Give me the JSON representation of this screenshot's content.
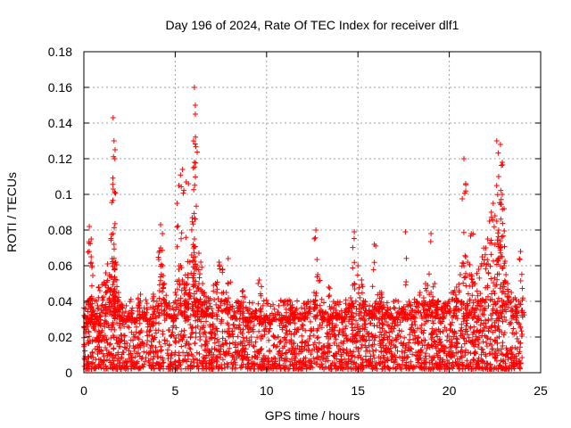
{
  "chart_data": {
    "type": "scatter",
    "title": "Day 196 of 2024, Rate Of TEC Index for receiver dlf1",
    "xlabel": "GPS time / hours",
    "ylabel": "ROTI / TECUs",
    "xlim": [
      0,
      25
    ],
    "ylim": [
      0,
      0.18
    ],
    "xticks": [
      0,
      5,
      10,
      15,
      20,
      25
    ],
    "xtick_labels": [
      "0",
      "5",
      "10",
      "15",
      "20",
      "25"
    ],
    "yticks": [
      0,
      0.02,
      0.04,
      0.06,
      0.08,
      0.1,
      0.12,
      0.14,
      0.16,
      0.18
    ],
    "ytick_labels": [
      "0",
      "0.02",
      "0.04",
      "0.06",
      "0.08",
      "0.1",
      "0.12",
      "0.14",
      "0.16",
      "0.18"
    ],
    "grid": true,
    "marker": "+",
    "color": "#ff0000",
    "series": [
      {
        "name": "dlf1",
        "x": [
          0.1,
          0.2,
          0.3,
          0.35,
          0.4,
          0.5,
          0.6,
          0.7,
          0.8,
          0.9,
          1.0,
          1.1,
          1.2,
          1.3,
          1.4,
          1.5,
          1.55,
          1.6,
          1.65,
          1.7,
          1.75,
          1.8,
          1.9,
          2.0,
          2.1,
          2.2,
          2.4,
          2.6,
          2.8,
          3.0,
          3.2,
          3.4,
          3.6,
          3.8,
          4.0,
          4.2,
          4.3,
          4.4,
          4.6,
          4.8,
          5.0,
          5.2,
          5.3,
          5.4,
          5.5,
          5.6,
          5.7,
          5.8,
          5.9,
          6.0,
          6.05,
          6.1,
          6.15,
          6.2,
          6.3,
          6.4,
          6.5,
          6.6,
          6.7,
          6.8,
          7.0,
          7.2,
          7.4,
          7.6,
          7.8,
          8.0,
          8.2,
          8.4,
          8.6,
          8.8,
          9.0,
          9.2,
          9.4,
          9.6,
          9.8,
          10.0,
          10.2,
          10.4,
          10.6,
          10.8,
          11.0,
          11.2,
          11.4,
          11.6,
          11.8,
          12.0,
          12.2,
          12.4,
          12.6,
          12.8,
          13.0,
          13.2,
          13.4,
          13.6,
          13.8,
          14.0,
          14.2,
          14.4,
          14.6,
          14.8,
          15.0,
          15.2,
          15.4,
          15.6,
          15.8,
          16.0,
          16.2,
          16.4,
          16.6,
          16.8,
          17.0,
          17.2,
          17.4,
          17.6,
          17.8,
          18.0,
          18.2,
          18.4,
          18.6,
          18.8,
          19.0,
          19.2,
          19.4,
          19.6,
          19.8,
          20.0,
          20.2,
          20.4,
          20.6,
          20.8,
          20.9,
          21.0,
          21.2,
          21.4,
          21.6,
          21.8,
          22.0,
          22.1,
          22.2,
          22.3,
          22.4,
          22.5,
          22.6,
          22.7,
          22.8,
          22.9,
          23.0,
          23.1,
          23.2,
          23.4,
          23.6,
          23.8,
          24.0,
          1.6,
          1.65,
          1.7,
          1.6,
          6.05,
          6.1,
          6.1,
          6.0,
          6.05,
          5.6,
          5.2,
          5.4,
          20.8,
          20.9,
          22.6,
          22.8,
          22.9,
          22.7,
          22.9,
          23.0,
          0.3,
          0.4,
          4.2,
          4.3,
          9.6,
          12.7,
          14.8,
          15.9,
          17.6,
          19.0,
          21.2,
          0.8,
          3.1,
          7.9,
          8.7,
          11.3,
          13.4,
          16.3,
          18.7,
          20.3,
          23.9
        ],
        "y": [
          0.022,
          0.031,
          0.041,
          0.028,
          0.065,
          0.035,
          0.024,
          0.03,
          0.018,
          0.027,
          0.042,
          0.05,
          0.056,
          0.061,
          0.055,
          0.047,
          0.064,
          0.078,
          0.072,
          0.058,
          0.062,
          0.052,
          0.045,
          0.038,
          0.03,
          0.026,
          0.032,
          0.035,
          0.028,
          0.038,
          0.034,
          0.03,
          0.027,
          0.044,
          0.04,
          0.07,
          0.06,
          0.05,
          0.038,
          0.032,
          0.045,
          0.058,
          0.06,
          0.052,
          0.044,
          0.05,
          0.055,
          0.062,
          0.066,
          0.07,
          0.075,
          0.065,
          0.058,
          0.06,
          0.067,
          0.062,
          0.05,
          0.045,
          0.04,
          0.042,
          0.036,
          0.05,
          0.062,
          0.058,
          0.045,
          0.038,
          0.032,
          0.04,
          0.036,
          0.03,
          0.028,
          0.033,
          0.035,
          0.03,
          0.028,
          0.032,
          0.027,
          0.03,
          0.034,
          0.029,
          0.031,
          0.028,
          0.038,
          0.035,
          0.03,
          0.032,
          0.037,
          0.04,
          0.045,
          0.055,
          0.035,
          0.03,
          0.028,
          0.032,
          0.035,
          0.033,
          0.03,
          0.036,
          0.042,
          0.05,
          0.06,
          0.052,
          0.04,
          0.035,
          0.033,
          0.04,
          0.045,
          0.038,
          0.035,
          0.032,
          0.03,
          0.034,
          0.036,
          0.033,
          0.04,
          0.035,
          0.04,
          0.045,
          0.042,
          0.038,
          0.045,
          0.05,
          0.04,
          0.036,
          0.038,
          0.04,
          0.045,
          0.048,
          0.055,
          0.06,
          0.065,
          0.062,
          0.055,
          0.05,
          0.058,
          0.065,
          0.07,
          0.075,
          0.085,
          0.09,
          0.095,
          0.088,
          0.085,
          0.08,
          0.07,
          0.065,
          0.06,
          0.055,
          0.05,
          0.045,
          0.042,
          0.04,
          0.035,
          0.143,
          0.13,
          0.12,
          0.103,
          0.16,
          0.15,
          0.145,
          0.13,
          0.118,
          0.107,
          0.105,
          0.114,
          0.12,
          0.106,
          0.13,
          0.128,
          0.118,
          0.11,
          0.1,
          0.092,
          0.082,
          0.075,
          0.083,
          0.078,
          0.052,
          0.08,
          0.079,
          0.072,
          0.079,
          0.078,
          0.078,
          0.048,
          0.044,
          0.064,
          0.046,
          0.038,
          0.048,
          0.045,
          0.05,
          0.046,
          0.068
        ],
        "baseline_range": [
          0.002,
          0.03
        ]
      }
    ]
  }
}
